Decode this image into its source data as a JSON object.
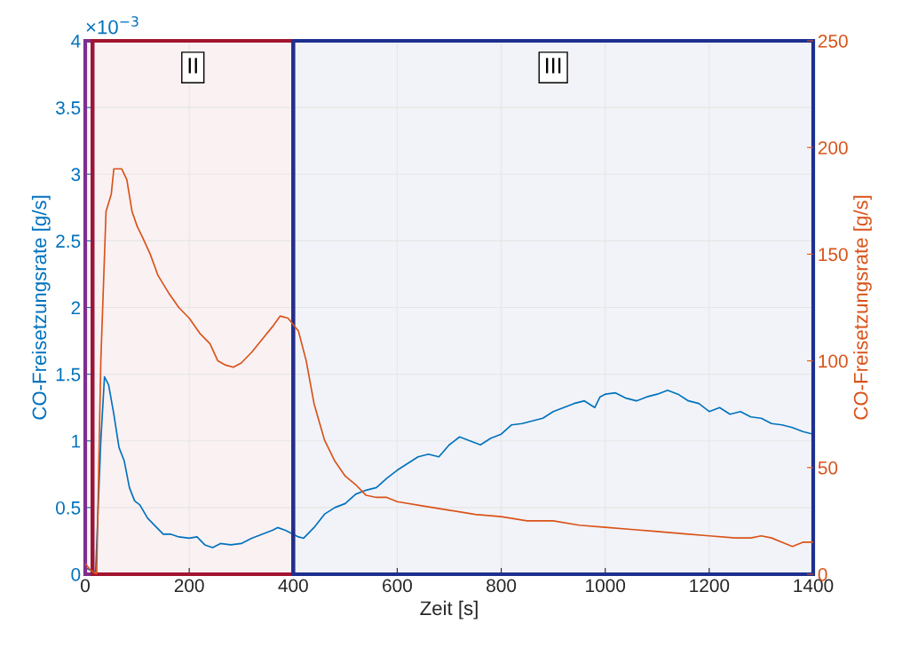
{
  "chart_data": {
    "type": "line",
    "xlabel": "Zeit [s]",
    "ylabel": "CO-Freisetzungsrate [g/s]",
    "y2label": "CO-Freisetzungsrate [g/s]",
    "xlim": [
      0,
      1400
    ],
    "xticks": [
      0,
      200,
      400,
      600,
      800,
      1000,
      1200,
      1400
    ],
    "ylim": [
      0,
      4
    ],
    "yticks": [
      0,
      0.5,
      1,
      1.5,
      2,
      2.5,
      3,
      3.5,
      4
    ],
    "y2lim": [
      0,
      250
    ],
    "y2ticks": [
      0,
      50,
      100,
      150,
      200,
      250
    ],
    "grid": true,
    "annotations": [
      "×10$^{−3}$"
    ],
    "bands": [
      {
        "axis": "x",
        "from": 0,
        "to": 14,
        "color": "#7e2f8e"
      },
      {
        "axis": "x",
        "from": 14,
        "to": 400,
        "label": "II",
        "color": "#a2142f"
      },
      {
        "axis": "x",
        "from": 400,
        "to": 1400,
        "label": "III",
        "color": "#1f2f8f"
      }
    ],
    "series": [
      {
        "color": "#0072bd",
        "x": [
          0,
          10,
          20,
          30,
          37,
          45,
          55,
          65,
          75,
          85,
          95,
          105,
          120,
          135,
          150,
          165,
          180,
          200,
          215,
          230,
          245,
          260,
          280,
          300,
          320,
          340,
          360,
          370,
          385,
          400,
          410,
          420,
          440,
          460,
          480,
          500,
          520,
          540,
          560,
          580,
          600,
          620,
          640,
          660,
          680,
          700,
          720,
          740,
          760,
          780,
          800,
          820,
          840,
          860,
          880,
          900,
          920,
          940,
          960,
          980,
          990,
          1000,
          1020,
          1040,
          1060,
          1080,
          1100,
          1120,
          1140,
          1160,
          1180,
          1200,
          1220,
          1240,
          1260,
          1280,
          1300,
          1320,
          1340,
          1360,
          1380,
          1400
        ],
        "values": [
          0.05,
          0.03,
          0.02,
          1.0,
          1.48,
          1.42,
          1.2,
          0.95,
          0.85,
          0.65,
          0.55,
          0.52,
          0.42,
          0.36,
          0.3,
          0.3,
          0.28,
          0.27,
          0.28,
          0.22,
          0.2,
          0.23,
          0.22,
          0.23,
          0.27,
          0.3,
          0.33,
          0.35,
          0.33,
          0.3,
          0.28,
          0.27,
          0.35,
          0.45,
          0.5,
          0.53,
          0.6,
          0.63,
          0.65,
          0.72,
          0.78,
          0.83,
          0.88,
          0.9,
          0.88,
          0.97,
          1.03,
          1.0,
          0.97,
          1.02,
          1.05,
          1.12,
          1.13,
          1.15,
          1.17,
          1.22,
          1.25,
          1.28,
          1.3,
          1.25,
          1.33,
          1.35,
          1.36,
          1.32,
          1.3,
          1.33,
          1.35,
          1.38,
          1.35,
          1.3,
          1.28,
          1.22,
          1.25,
          1.2,
          1.22,
          1.18,
          1.17,
          1.13,
          1.12,
          1.1,
          1.07,
          1.05
        ]
      },
      {
        "color": "#d95319",
        "axis": "y2",
        "x": [
          0,
          10,
          22,
          30,
          40,
          50,
          55,
          70,
          80,
          90,
          100,
          110,
          125,
          140,
          160,
          180,
          200,
          220,
          240,
          255,
          270,
          285,
          300,
          320,
          340,
          360,
          375,
          390,
          400,
          410,
          425,
          440,
          460,
          480,
          500,
          520,
          540,
          560,
          580,
          600,
          650,
          700,
          750,
          800,
          850,
          900,
          950,
          1000,
          1050,
          1100,
          1150,
          1200,
          1250,
          1280,
          1300,
          1320,
          1340,
          1360,
          1380,
          1400
        ],
        "values": [
          5,
          2,
          0,
          100,
          170,
          178,
          190,
          190,
          185,
          170,
          163,
          158,
          150,
          140,
          132,
          125,
          120,
          113,
          108,
          100,
          98,
          97,
          99,
          104,
          110,
          116,
          121,
          120,
          117,
          114,
          100,
          80,
          63,
          53,
          46,
          42,
          37,
          36,
          36,
          34,
          32,
          30,
          28,
          27,
          25,
          25,
          23,
          22,
          21,
          20,
          19,
          18,
          17,
          17,
          18,
          17,
          15,
          13,
          15,
          15
        ]
      }
    ]
  }
}
